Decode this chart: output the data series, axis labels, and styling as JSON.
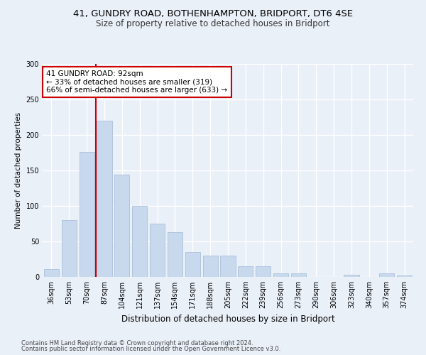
{
  "title1": "41, GUNDRY ROAD, BOTHENHAMPTON, BRIDPORT, DT6 4SE",
  "title2": "Size of property relative to detached houses in Bridport",
  "xlabel": "Distribution of detached houses by size in Bridport",
  "ylabel": "Number of detached properties",
  "categories": [
    "36sqm",
    "53sqm",
    "70sqm",
    "87sqm",
    "104sqm",
    "121sqm",
    "137sqm",
    "154sqm",
    "171sqm",
    "188sqm",
    "205sqm",
    "222sqm",
    "239sqm",
    "256sqm",
    "273sqm",
    "290sqm",
    "306sqm",
    "323sqm",
    "340sqm",
    "357sqm",
    "374sqm"
  ],
  "values": [
    11,
    80,
    176,
    220,
    144,
    100,
    75,
    63,
    35,
    30,
    30,
    15,
    15,
    5,
    5,
    0,
    0,
    3,
    0,
    5,
    2
  ],
  "bar_color": "#c9d9ed",
  "bar_edge_color": "#a0b8d8",
  "vline_index": 3,
  "annotation_text": "41 GUNDRY ROAD: 92sqm\n← 33% of detached houses are smaller (319)\n66% of semi-detached houses are larger (633) →",
  "annotation_box_color": "#ffffff",
  "annotation_box_edge": "#cc0000",
  "vline_color": "#cc0000",
  "footer1": "Contains HM Land Registry data © Crown copyright and database right 2024.",
  "footer2": "Contains public sector information licensed under the Open Government Licence v3.0.",
  "ylim": [
    0,
    300
  ],
  "yticks": [
    0,
    50,
    100,
    150,
    200,
    250,
    300
  ],
  "bg_color": "#eaf0f8",
  "plot_bg_color": "#eaf0f8",
  "grid_color": "#ffffff",
  "title1_fontsize": 9.5,
  "title2_fontsize": 8.5,
  "tick_fontsize": 7,
  "ylabel_fontsize": 7.5,
  "xlabel_fontsize": 8.5,
  "annotation_fontsize": 7.5,
  "footer_fontsize": 6
}
